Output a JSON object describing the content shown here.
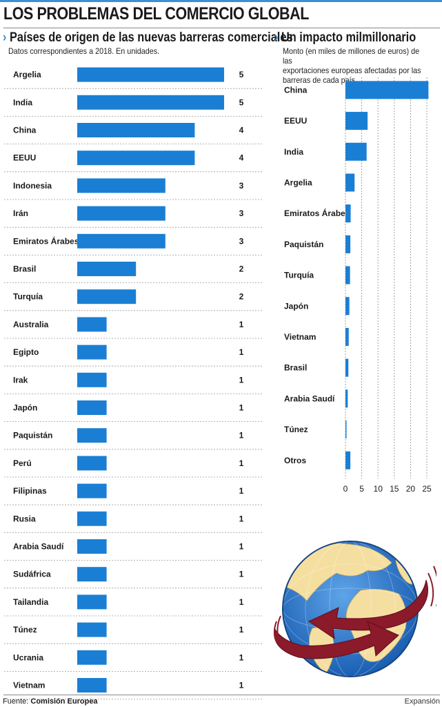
{
  "title": "LOS PROBLEMAS DEL COMERCIO GLOBAL",
  "left_panel": {
    "title": "Países de origen de las nuevas barreras comerciales",
    "subtitle": "Datos correspondientes a 2018. En unidades."
  },
  "right_panel": {
    "title": "Un impacto milmillonario",
    "subtitle_lines": [
      "Monto (en miles de millones de euros) de las",
      "exportaciones europeas afectadas por las",
      "barreras de cada país."
    ]
  },
  "footer": {
    "source_label": "Fuente:",
    "source": "Comisión Europea",
    "brand": "Expansión"
  },
  "colors": {
    "bar": "#1a7fd4",
    "accent": "#3a8fd6",
    "globe_ocean": "#2a73c9",
    "globe_land": "#f5dfa0",
    "arrow": "#8b1a2a"
  },
  "globe_icon": "globe-with-arrows-icon",
  "chart_data": [
    {
      "type": "bar",
      "orientation": "horizontal",
      "title": "Países de origen de las nuevas barreras comerciales",
      "subtitle": "Datos correspondientes a 2018. En unidades.",
      "categories": [
        "Argelia",
        "India",
        "China",
        "EEUU",
        "Indonesia",
        "Irán",
        "Emiratos Árabes",
        "Brasil",
        "Turquía",
        "Australia",
        "Egipto",
        "Irak",
        "Japón",
        "Paquistán",
        "Perú",
        "Filipinas",
        "Rusia",
        "Arabia Saudí",
        "Sudáfrica",
        "Tailandia",
        "Túnez",
        "Ucrania",
        "Vietnam"
      ],
      "values": [
        5,
        5,
        4,
        4,
        3,
        3,
        3,
        2,
        2,
        1,
        1,
        1,
        1,
        1,
        1,
        1,
        1,
        1,
        1,
        1,
        1,
        1,
        1
      ],
      "data_labels": true,
      "grid": false
    },
    {
      "type": "bar",
      "orientation": "horizontal",
      "title": "Un impacto milmillonario",
      "categories": [
        "China",
        "EEUU",
        "India",
        "Argelia",
        "Emiratos Árabes",
        "Paquistán",
        "Turquía",
        "Japón",
        "Vietnam",
        "Brasil",
        "Arabia Saudí",
        "Túnez",
        "Otros"
      ],
      "values": [
        25.5,
        6.8,
        6.5,
        2.8,
        1.6,
        1.5,
        1.4,
        1.2,
        1.0,
        0.9,
        0.7,
        0.3,
        1.5
      ],
      "xlim": [
        0,
        25
      ],
      "xticks": [
        "0",
        "5",
        "10",
        "15",
        "20",
        "25"
      ],
      "grid": true
    }
  ]
}
